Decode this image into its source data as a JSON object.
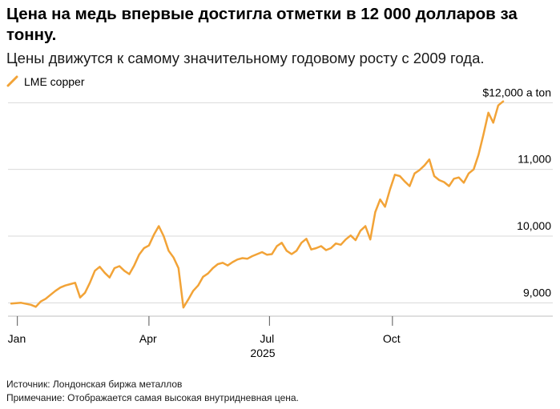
{
  "header": {
    "title": "Цена на медь впервые достигла отметки в 12 000 долларов за тонну.",
    "subtitle": "Цены движутся к самому значительному годовому росту с 2009 года."
  },
  "footer": {
    "source": "Источник: Лондонская биржа металлов",
    "note": "Примечание: Отображается самая высокая внутридневная цена."
  },
  "colors": {
    "series": "#f2a337",
    "grid": "#d9d9d9",
    "axis": "#bfbfbf"
  },
  "chart_data": {
    "type": "line",
    "series": [
      {
        "name": "LME copper",
        "color": "#f2a337",
        "x": [
          0.0,
          0.02,
          0.04,
          0.05,
          0.06,
          0.07,
          0.08,
          0.09,
          0.1,
          0.11,
          0.12,
          0.13,
          0.14,
          0.15,
          0.16,
          0.17,
          0.18,
          0.19,
          0.2,
          0.21,
          0.22,
          0.23,
          0.24,
          0.25,
          0.26,
          0.27,
          0.28,
          0.29,
          0.3,
          0.31,
          0.32,
          0.33,
          0.34,
          0.35,
          0.36,
          0.37,
          0.38,
          0.39,
          0.4,
          0.41,
          0.42,
          0.43,
          0.44,
          0.45,
          0.46,
          0.47,
          0.48,
          0.49,
          0.5,
          0.51,
          0.52,
          0.53,
          0.54,
          0.55,
          0.56,
          0.57,
          0.58,
          0.59,
          0.6,
          0.61,
          0.62,
          0.63,
          0.64,
          0.65,
          0.66,
          0.67,
          0.68,
          0.69,
          0.7,
          0.71,
          0.72,
          0.73,
          0.74,
          0.75,
          0.76,
          0.77,
          0.78,
          0.79,
          0.8,
          0.81,
          0.82,
          0.83,
          0.84,
          0.85,
          0.86,
          0.87,
          0.88,
          0.89,
          0.9,
          0.91,
          0.92,
          0.93,
          0.94,
          0.95,
          0.96,
          0.97,
          0.98,
          0.99,
          1.0
        ],
        "values": [
          8990,
          9000,
          8970,
          8940,
          9020,
          9060,
          9120,
          9180,
          9230,
          9260,
          9280,
          9300,
          9080,
          9150,
          9300,
          9480,
          9540,
          9450,
          9380,
          9520,
          9550,
          9480,
          9430,
          9560,
          9720,
          9820,
          9860,
          10020,
          10150,
          10000,
          9780,
          9680,
          9520,
          8930,
          9050,
          9180,
          9260,
          9390,
          9440,
          9520,
          9580,
          9600,
          9560,
          9610,
          9650,
          9670,
          9660,
          9700,
          9730,
          9760,
          9720,
          9730,
          9850,
          9900,
          9780,
          9730,
          9780,
          9900,
          9960,
          9800,
          9820,
          9850,
          9790,
          9820,
          9890,
          9870,
          9950,
          10010,
          9940,
          10080,
          10150,
          9950,
          10360,
          10550,
          10440,
          10700,
          10920,
          10900,
          10820,
          10750,
          10940,
          10990,
          11060,
          11150,
          10900,
          10840,
          10810,
          10750,
          10860,
          10880,
          10800,
          10940,
          11000,
          11220,
          11520,
          11850,
          11700,
          11960,
          12020
        ]
      }
    ],
    "xlabel": "",
    "ylabel": "",
    "ylim": [
      8800,
      12100
    ],
    "yticks": [
      9000,
      10000,
      11000,
      12000
    ],
    "ytick_labels": [
      "9,000",
      "10,000",
      "11,000",
      "$12,000 a ton"
    ],
    "xticks": [
      0.0125,
      0.28,
      0.525,
      0.775
    ],
    "xtick_labels": [
      "Jan",
      "Apr",
      "Jul",
      "Oct"
    ],
    "year_label": "2025",
    "legend_position": "top-left"
  }
}
